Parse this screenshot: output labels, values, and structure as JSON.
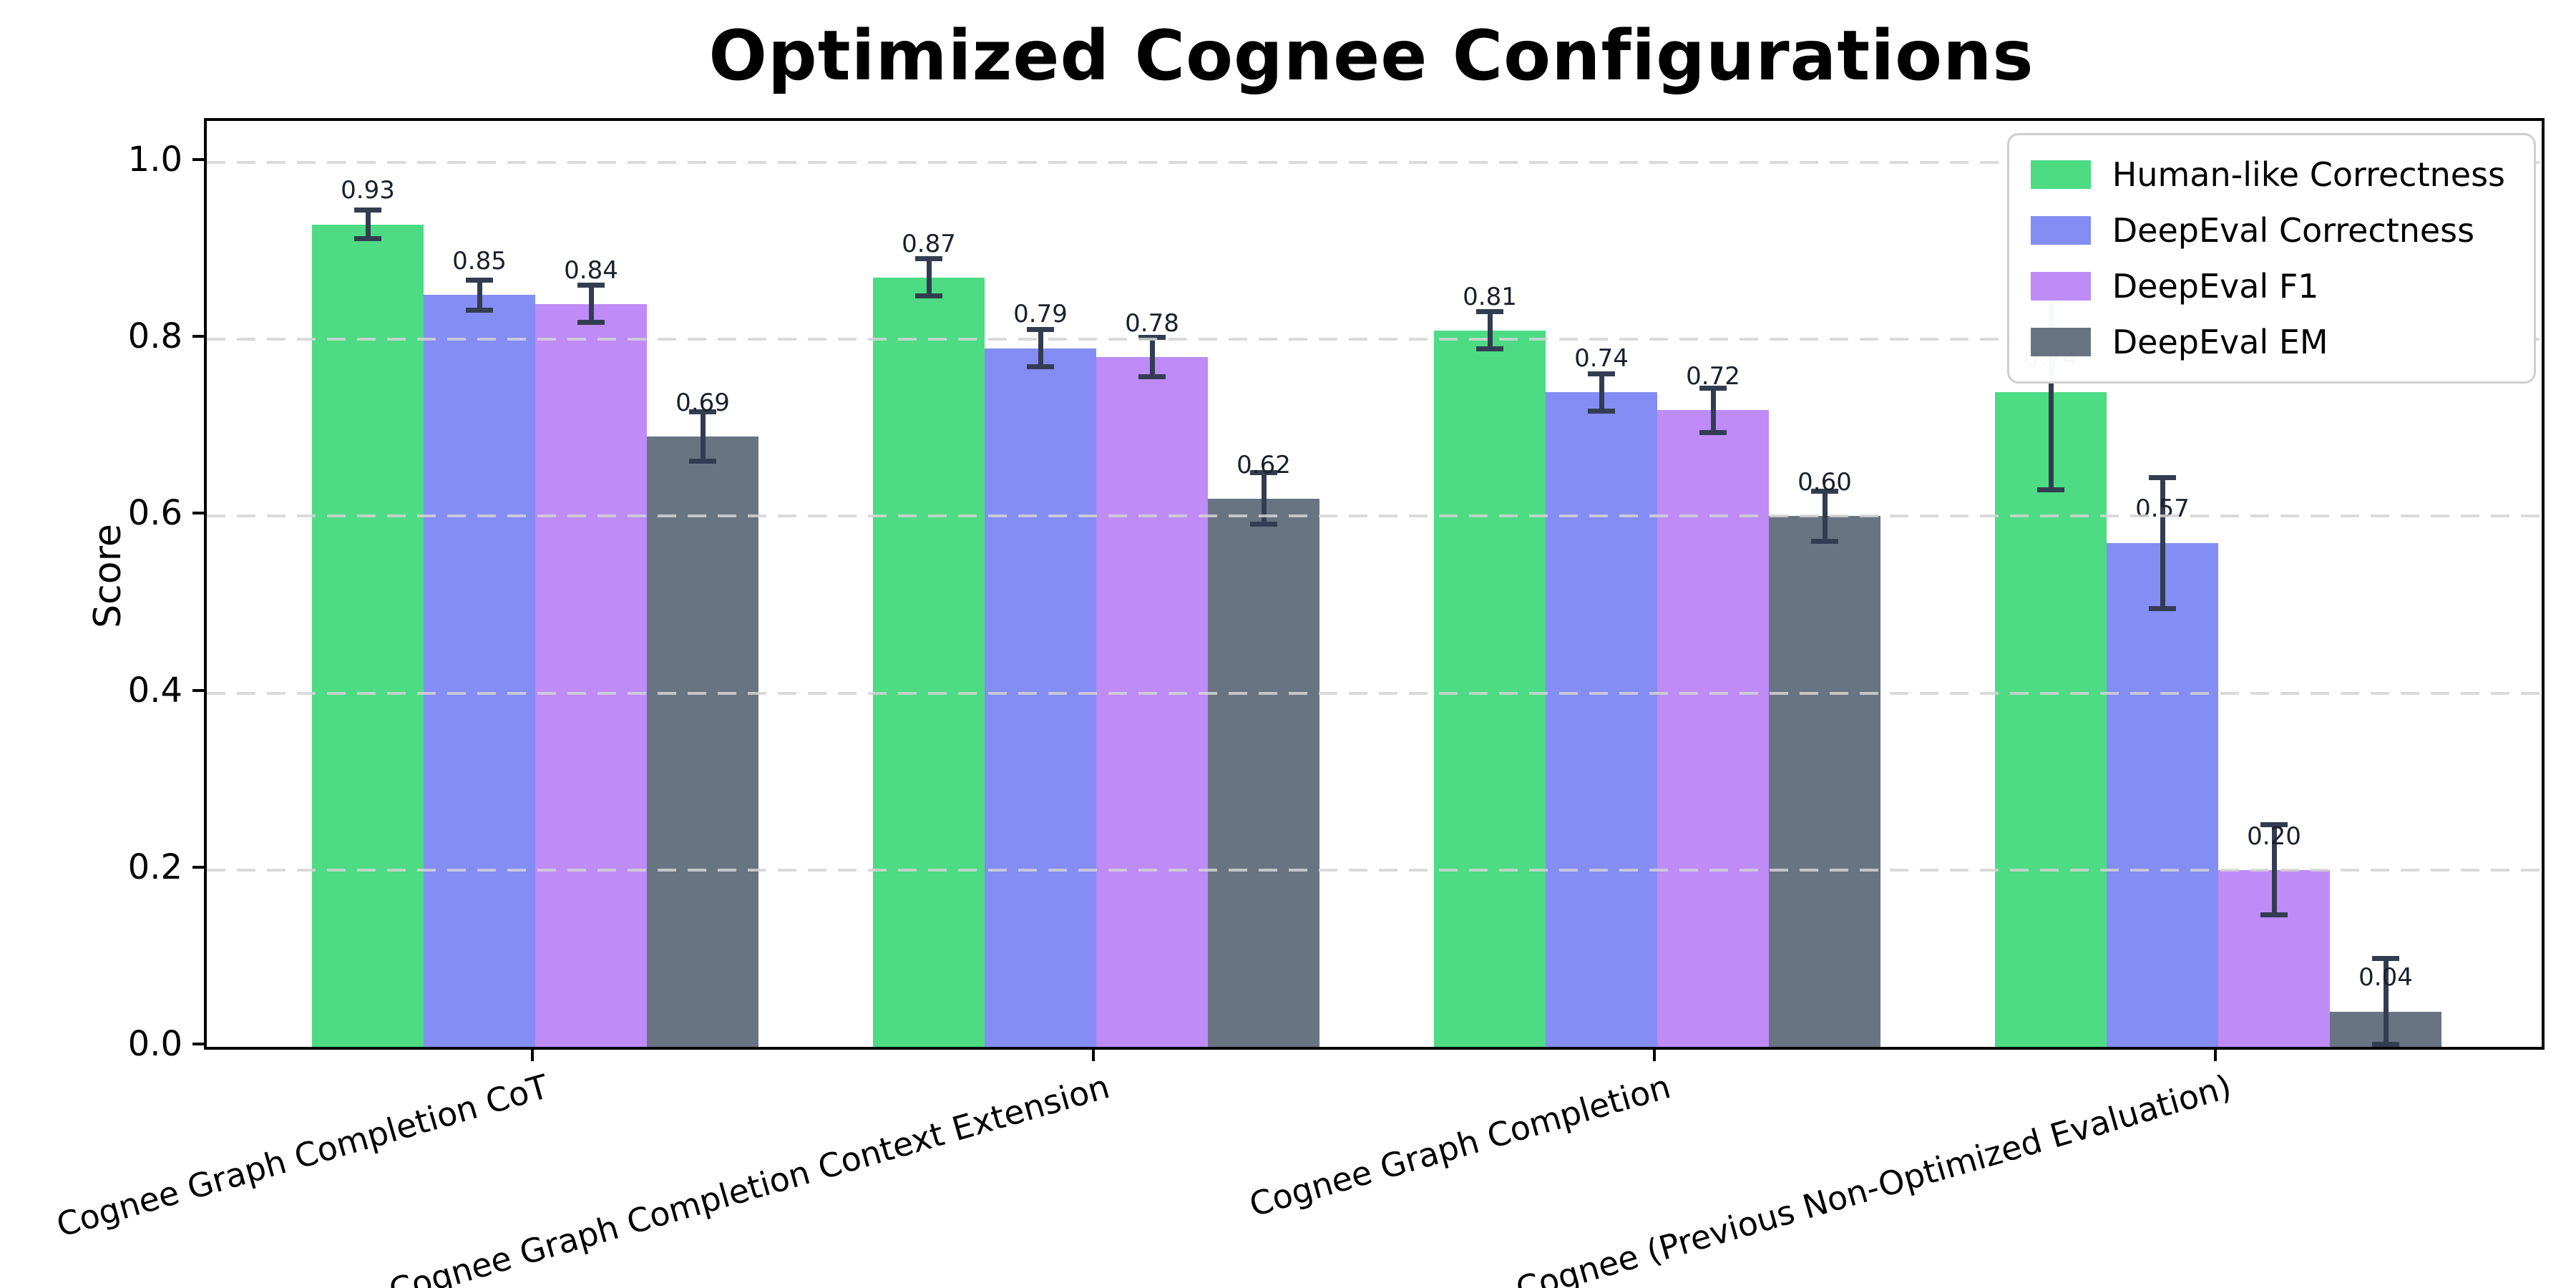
{
  "title": "Optimized Cognee Configurations",
  "axes": {
    "ylabel": "Score",
    "ytick_labels": [
      "0.0",
      "0.2",
      "0.4",
      "0.6",
      "0.8",
      "1.0"
    ],
    "yticks": [
      0.0,
      0.2,
      0.4,
      0.6,
      0.8,
      1.0
    ]
  },
  "colors": {
    "human_like_correctness": "#4ddb84",
    "deepeval_correctness": "#838df4",
    "deepeval_f1": "#be8bf7",
    "deepeval_em": "#697483",
    "errorbar": "#333d51",
    "gridline": "#d3d3d3",
    "spine": "#000000",
    "legend_border": "#cfcfcf"
  },
  "chart_data": {
    "type": "bar",
    "title": "Optimized Cognee Configurations",
    "xlabel": "",
    "ylabel": "Score",
    "ylim": [
      0,
      1.047
    ],
    "grid": "horizontal dashed",
    "legend_position": "upper right",
    "categories": [
      "Cognee Graph Completion CoT",
      "Cognee Graph Completion Context Extension",
      "Cognee Graph Completion",
      "Cognee (Previous Non-Optimized Evaluation)"
    ],
    "series": [
      {
        "name": "Human-like Correctness",
        "color": "#4ddb84",
        "values": [
          0.93,
          0.87,
          0.81,
          0.74
        ],
        "errors": [
          0.016,
          0.021,
          0.021,
          0.11
        ],
        "labels": [
          "0.93",
          "0.87",
          "0.81",
          "0.74"
        ]
      },
      {
        "name": "DeepEval Correctness",
        "color": "#838df4",
        "values": [
          0.85,
          0.79,
          0.74,
          0.57
        ],
        "errors": [
          0.017,
          0.021,
          0.021,
          0.074
        ],
        "labels": [
          "0.85",
          "0.79",
          "0.74",
          "0.57"
        ]
      },
      {
        "name": "DeepEval F1",
        "color": "#be8bf7",
        "values": [
          0.84,
          0.78,
          0.72,
          0.2
        ],
        "errors": [
          0.021,
          0.022,
          0.025,
          0.051
        ],
        "labels": [
          "0.84",
          "0.78",
          "0.72",
          "0.20"
        ]
      },
      {
        "name": "DeepEval EM",
        "color": "#697483",
        "values": [
          0.69,
          0.62,
          0.6,
          0.04
        ],
        "errors": [
          0.028,
          0.029,
          0.028,
          0.06
        ],
        "labels": [
          "0.69",
          "0.62",
          "0.60",
          "0.04"
        ]
      }
    ]
  }
}
